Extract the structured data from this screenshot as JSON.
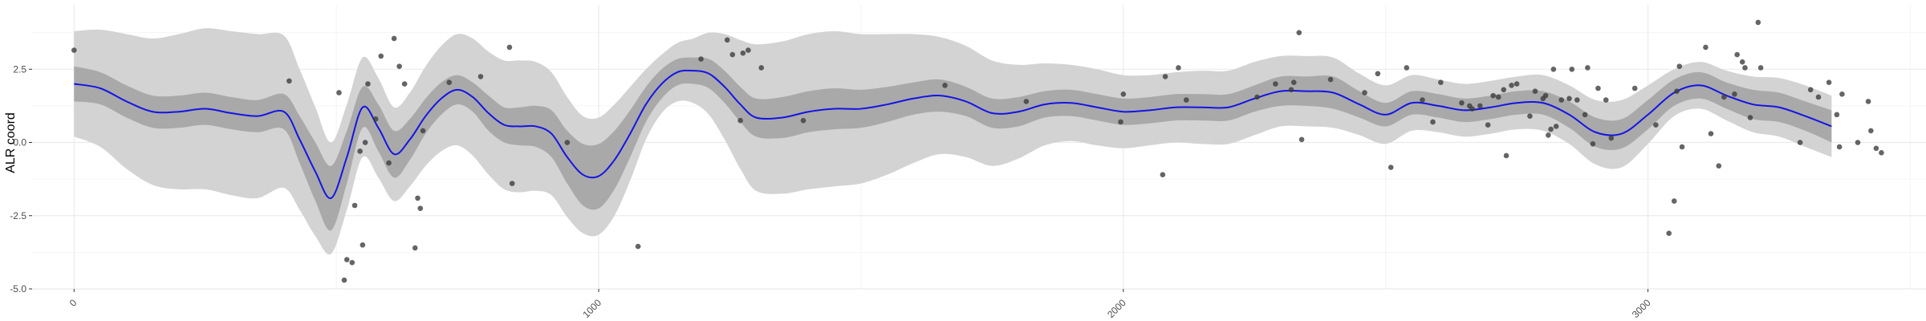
{
  "chart_data": {
    "type": "line",
    "title": "",
    "xlabel": "",
    "ylabel": "ALR coord",
    "xlim": [
      -80,
      3530
    ],
    "ylim": [
      -5.0,
      4.7
    ],
    "x_ticks": [
      0,
      1000,
      2000,
      3000
    ],
    "x_tick_labels": [
      "0",
      "1000",
      "2000",
      "3000"
    ],
    "y_ticks": [
      -5.0,
      -2.5,
      0.0,
      2.5
    ],
    "y_tick_labels": [
      "-5.0",
      "-2.5",
      "0.0",
      "2.5"
    ],
    "grid": true,
    "legend": "none",
    "colors": {
      "line": "#1414e6",
      "inner_band": "#a9a9a9",
      "outer_band": "#d3d3d3",
      "points": "#3a3a3a",
      "grid_major": "#ebebeb",
      "grid_minor": "#f5f5f5"
    },
    "mean_line": {
      "x": [
        0,
        50,
        100,
        150,
        200,
        250,
        300,
        350,
        400,
        430,
        460,
        490,
        520,
        550,
        580,
        610,
        640,
        670,
        700,
        730,
        760,
        790,
        820,
        850,
        880,
        910,
        940,
        970,
        1000,
        1030,
        1060,
        1090,
        1120,
        1150,
        1180,
        1210,
        1240,
        1270,
        1300,
        1350,
        1400,
        1450,
        1500,
        1550,
        1600,
        1650,
        1700,
        1750,
        1800,
        1850,
        1900,
        1950,
        2000,
        2050,
        2100,
        2150,
        2200,
        2250,
        2300,
        2350,
        2400,
        2450,
        2500,
        2550,
        2600,
        2650,
        2700,
        2750,
        2800,
        2850,
        2900,
        2950,
        3000,
        3050,
        3100,
        3150,
        3200,
        3250,
        3300,
        3350
      ],
      "y": [
        2.0,
        1.85,
        1.4,
        1.05,
        1.05,
        1.15,
        1.0,
        0.9,
        1.05,
        0.1,
        -1.0,
        -1.9,
        -0.5,
        1.2,
        0.5,
        -0.4,
        0.1,
        0.9,
        1.5,
        1.8,
        1.55,
        1.0,
        0.6,
        0.55,
        0.55,
        0.3,
        -0.5,
        -1.1,
        -1.15,
        -0.6,
        0.3,
        1.3,
        2.0,
        2.4,
        2.45,
        2.35,
        1.9,
        1.3,
        0.85,
        0.85,
        1.05,
        1.15,
        1.15,
        1.3,
        1.5,
        1.6,
        1.4,
        1.0,
        1.05,
        1.3,
        1.35,
        1.2,
        1.05,
        1.1,
        1.2,
        1.2,
        1.2,
        1.5,
        1.75,
        1.75,
        1.7,
        1.3,
        0.95,
        1.35,
        1.25,
        1.1,
        1.2,
        1.35,
        1.35,
        0.95,
        0.35,
        0.3,
        0.95,
        1.7,
        1.95,
        1.6,
        1.3,
        1.2,
        0.9,
        0.55
      ],
      "inner_band_halfwidth": [
        0.6,
        0.55,
        0.55,
        0.55,
        0.55,
        0.55,
        0.55,
        0.55,
        0.6,
        0.8,
        1.0,
        1.1,
        0.9,
        0.7,
        0.8,
        0.8,
        0.7,
        0.6,
        0.55,
        0.5,
        0.5,
        0.6,
        0.6,
        0.65,
        0.7,
        0.8,
        0.9,
        1.05,
        1.1,
        1.0,
        0.8,
        0.6,
        0.5,
        0.45,
        0.45,
        0.5,
        0.55,
        0.6,
        0.65,
        0.7,
        0.7,
        0.7,
        0.65,
        0.6,
        0.55,
        0.55,
        0.5,
        0.5,
        0.5,
        0.45,
        0.45,
        0.45,
        0.45,
        0.45,
        0.45,
        0.45,
        0.45,
        0.45,
        0.5,
        0.5,
        0.55,
        0.45,
        0.4,
        0.4,
        0.4,
        0.4,
        0.4,
        0.4,
        0.4,
        0.45,
        0.5,
        0.5,
        0.5,
        0.45,
        0.45,
        0.45,
        0.5,
        0.5,
        0.5,
        0.55
      ],
      "outer_band_halfwidth": [
        1.8,
        2.0,
        2.3,
        2.5,
        2.65,
        2.75,
        2.8,
        2.8,
        2.6,
        2.4,
        2.2,
        1.9,
        1.8,
        1.7,
        1.7,
        1.6,
        1.6,
        1.7,
        1.8,
        1.9,
        2.0,
        2.1,
        2.2,
        2.25,
        2.2,
        2.1,
        2.05,
        2.0,
        2.0,
        1.9,
        1.6,
        1.2,
        1.0,
        1.0,
        1.1,
        1.4,
        1.8,
        2.2,
        2.5,
        2.6,
        2.65,
        2.65,
        2.55,
        2.4,
        2.2,
        2.0,
        1.9,
        1.8,
        1.6,
        1.4,
        1.3,
        1.3,
        1.25,
        1.2,
        1.2,
        1.25,
        1.25,
        1.25,
        1.2,
        1.2,
        1.2,
        1.05,
        1.0,
        0.95,
        0.9,
        0.9,
        0.9,
        0.9,
        0.95,
        1.0,
        1.1,
        1.15,
        1.0,
        0.8,
        0.8,
        0.85,
        0.95,
        1.0,
        1.05,
        1.05
      ]
    },
    "points": [
      [
        0,
        3.15
      ],
      [
        410,
        2.1
      ],
      [
        505,
        1.7
      ],
      [
        515,
        -4.7
      ],
      [
        520,
        -4.0
      ],
      [
        530,
        -4.1
      ],
      [
        535,
        -2.15
      ],
      [
        545,
        -0.3
      ],
      [
        550,
        -3.5
      ],
      [
        555,
        0.0
      ],
      [
        560,
        2.0
      ],
      [
        575,
        0.8
      ],
      [
        585,
        2.95
      ],
      [
        600,
        -0.7
      ],
      [
        610,
        3.55
      ],
      [
        620,
        2.6
      ],
      [
        630,
        2.0
      ],
      [
        650,
        -3.6
      ],
      [
        655,
        -1.9
      ],
      [
        660,
        -2.25
      ],
      [
        665,
        0.4
      ],
      [
        715,
        2.05
      ],
      [
        775,
        2.25
      ],
      [
        830,
        3.25
      ],
      [
        835,
        -1.4
      ],
      [
        940,
        0.0
      ],
      [
        1075,
        -3.55
      ],
      [
        1195,
        2.85
      ],
      [
        1245,
        3.5
      ],
      [
        1255,
        3.0
      ],
      [
        1270,
        0.75
      ],
      [
        1275,
        3.05
      ],
      [
        1285,
        3.15
      ],
      [
        1310,
        2.55
      ],
      [
        1390,
        0.75
      ],
      [
        1660,
        1.95
      ],
      [
        1815,
        1.4
      ],
      [
        1995,
        0.7
      ],
      [
        2000,
        1.65
      ],
      [
        2075,
        -1.1
      ],
      [
        2080,
        2.25
      ],
      [
        2105,
        2.55
      ],
      [
        2120,
        1.45
      ],
      [
        2255,
        1.55
      ],
      [
        2290,
        2.0
      ],
      [
        2320,
        1.8
      ],
      [
        2325,
        2.05
      ],
      [
        2335,
        3.75
      ],
      [
        2340,
        0.1
      ],
      [
        2395,
        2.15
      ],
      [
        2460,
        1.7
      ],
      [
        2485,
        2.35
      ],
      [
        2510,
        -0.85
      ],
      [
        2540,
        2.55
      ],
      [
        2570,
        1.45
      ],
      [
        2590,
        0.7
      ],
      [
        2605,
        2.05
      ],
      [
        2645,
        1.35
      ],
      [
        2660,
        1.25
      ],
      [
        2665,
        1.15
      ],
      [
        2680,
        1.25
      ],
      [
        2695,
        0.6
      ],
      [
        2705,
        1.6
      ],
      [
        2715,
        1.55
      ],
      [
        2725,
        1.8
      ],
      [
        2730,
        -0.45
      ],
      [
        2740,
        1.95
      ],
      [
        2750,
        2.0
      ],
      [
        2775,
        0.9
      ],
      [
        2785,
        1.75
      ],
      [
        2800,
        1.5
      ],
      [
        2805,
        1.6
      ],
      [
        2810,
        0.25
      ],
      [
        2815,
        0.45
      ],
      [
        2820,
        2.5
      ],
      [
        2825,
        0.55
      ],
      [
        2835,
        1.45
      ],
      [
        2850,
        1.5
      ],
      [
        2855,
        2.5
      ],
      [
        2865,
        1.45
      ],
      [
        2880,
        0.95
      ],
      [
        2885,
        2.55
      ],
      [
        2895,
        -0.05
      ],
      [
        2905,
        1.85
      ],
      [
        2920,
        1.45
      ],
      [
        2930,
        0.15
      ],
      [
        2975,
        1.85
      ],
      [
        3015,
        0.6
      ],
      [
        3040,
        -3.1
      ],
      [
        3050,
        -2.0
      ],
      [
        3055,
        1.75
      ],
      [
        3060,
        2.6
      ],
      [
        3065,
        -0.15
      ],
      [
        3110,
        3.25
      ],
      [
        3120,
        0.3
      ],
      [
        3135,
        -0.8
      ],
      [
        3145,
        1.55
      ],
      [
        3165,
        1.65
      ],
      [
        3170,
        3.0
      ],
      [
        3180,
        2.75
      ],
      [
        3185,
        2.55
      ],
      [
        3195,
        0.85
      ],
      [
        3210,
        4.1
      ],
      [
        3215,
        2.55
      ],
      [
        3290,
        0.0
      ],
      [
        3310,
        1.8
      ],
      [
        3325,
        1.55
      ],
      [
        3345,
        2.05
      ],
      [
        3360,
        0.95
      ],
      [
        3365,
        -0.15
      ],
      [
        3370,
        1.65
      ],
      [
        3400,
        0.0
      ],
      [
        3420,
        1.4
      ],
      [
        3425,
        0.4
      ],
      [
        3435,
        -0.2
      ],
      [
        3445,
        -0.35
      ]
    ]
  }
}
